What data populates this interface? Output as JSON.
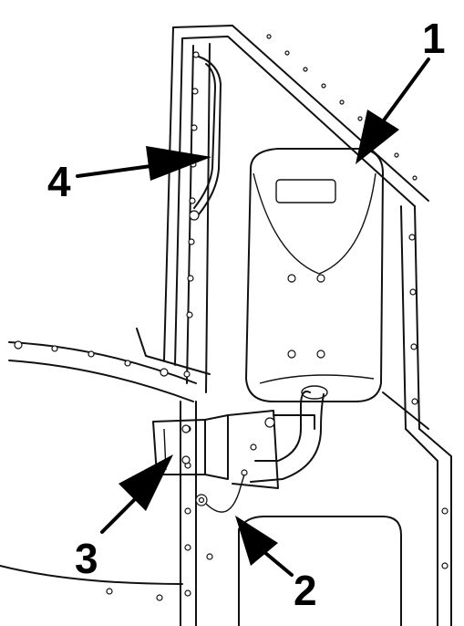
{
  "callouts": [
    {
      "id": "1",
      "label": "1"
    },
    {
      "id": "2",
      "label": "2"
    },
    {
      "id": "3",
      "label": "3"
    },
    {
      "id": "4",
      "label": "4"
    }
  ]
}
